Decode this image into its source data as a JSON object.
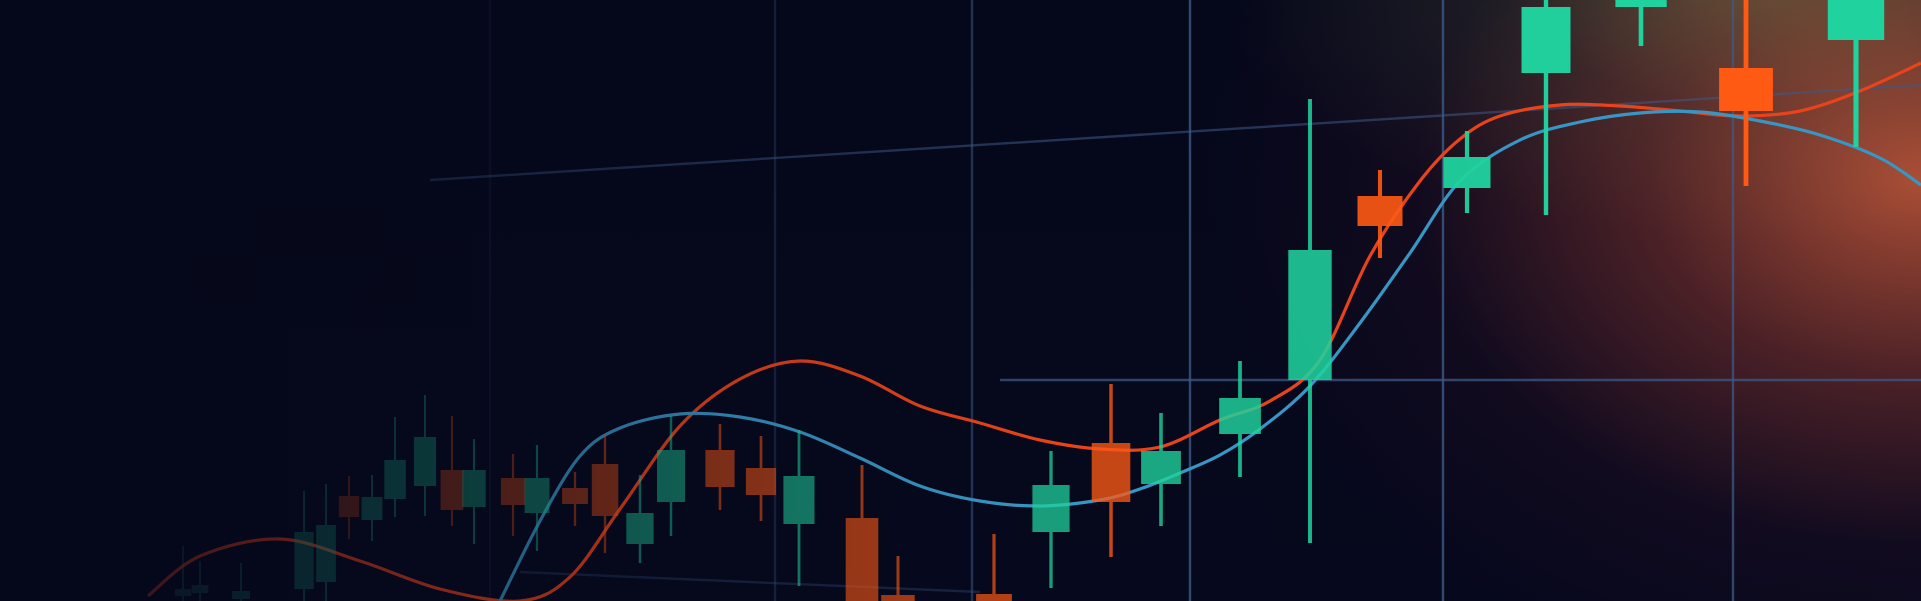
{
  "chart_data": {
    "type": "candlestick",
    "title": "",
    "xlabel": "",
    "ylabel": "",
    "grid": true,
    "ylim": [
      0,
      601
    ],
    "colors": {
      "background": "#05071a",
      "bull": "#20d39e",
      "bear": "#ff5a14",
      "line_red": "#e8431a",
      "line_blue": "#3896c4",
      "grid": "#3c5a86"
    },
    "candles": [
      {
        "x": 183,
        "open": 5,
        "close": 12,
        "high": 55,
        "low": 0,
        "dir": "bull"
      },
      {
        "x": 200,
        "open": 8,
        "close": 16,
        "high": 40,
        "low": 0,
        "dir": "bull"
      },
      {
        "x": 241,
        "open": 2,
        "close": 10,
        "high": 38,
        "low": 0,
        "dir": "bull"
      },
      {
        "x": 304,
        "open": 12,
        "close": 69,
        "high": 110,
        "low": 0,
        "dir": "bull"
      },
      {
        "x": 326,
        "open": 19,
        "close": 76,
        "high": 117,
        "low": 0,
        "dir": "bull"
      },
      {
        "x": 349,
        "open": 105,
        "close": 84,
        "high": 125,
        "low": 62,
        "dir": "bear"
      },
      {
        "x": 372,
        "open": 81,
        "close": 104,
        "high": 126,
        "low": 60,
        "dir": "bull"
      },
      {
        "x": 395,
        "open": 102,
        "close": 141,
        "high": 184,
        "low": 84,
        "dir": "bull"
      },
      {
        "x": 425,
        "open": 115,
        "close": 164,
        "high": 206,
        "low": 85,
        "dir": "bull"
      },
      {
        "x": 452,
        "open": 131,
        "close": 91,
        "high": 185,
        "low": 75,
        "dir": "bear"
      },
      {
        "x": 474,
        "open": 94,
        "close": 131,
        "high": 162,
        "low": 57,
        "dir": "bull"
      },
      {
        "x": 513,
        "open": 123,
        "close": 96,
        "high": 147,
        "low": 65,
        "dir": "bear"
      },
      {
        "x": 537,
        "open": 88,
        "close": 123,
        "high": 156,
        "low": 50,
        "dir": "bull"
      },
      {
        "x": 575,
        "open": 113,
        "close": 97,
        "high": 129,
        "low": 75,
        "dir": "bear"
      },
      {
        "x": 605,
        "open": 137,
        "close": 85,
        "high": 165,
        "low": 48,
        "dir": "bear"
      },
      {
        "x": 640,
        "open": 57,
        "close": 88,
        "high": 126,
        "low": 38,
        "dir": "bull"
      },
      {
        "x": 671,
        "open": 99,
        "close": 151,
        "high": 185,
        "low": 65,
        "dir": "bull"
      },
      {
        "x": 720,
        "open": 151,
        "close": 114,
        "high": 177,
        "low": 91,
        "dir": "bear"
      },
      {
        "x": 761,
        "open": 133,
        "close": 106,
        "high": 165,
        "low": 80,
        "dir": "bear"
      },
      {
        "x": 799,
        "open": 77,
        "close": 125,
        "high": 171,
        "low": 15,
        "dir": "bull"
      },
      {
        "x": 862,
        "open": 83,
        "close": -2,
        "high": 136,
        "low": -5,
        "dir": "bear"
      },
      {
        "x": 898,
        "open": 6,
        "close": -5,
        "high": 45,
        "low": -5,
        "dir": "bear"
      },
      {
        "x": 994,
        "open": 7,
        "close": -5,
        "high": 67,
        "low": -5,
        "dir": "bear"
      },
      {
        "x": 1051,
        "open": 69,
        "close": 116,
        "high": 150,
        "low": 13,
        "dir": "bull"
      },
      {
        "x": 1111,
        "open": 158,
        "close": 99,
        "high": 217,
        "low": 44,
        "dir": "bear"
      },
      {
        "x": 1161,
        "open": 117,
        "close": 150,
        "high": 188,
        "low": 75,
        "dir": "bull"
      },
      {
        "x": 1240,
        "open": 167,
        "close": 203,
        "high": 240,
        "low": 124,
        "dir": "bull"
      },
      {
        "x": 1310,
        "open": 221,
        "close": 351,
        "high": 502,
        "low": 58,
        "dir": "bull"
      },
      {
        "x": 1380,
        "open": 375,
        "close": 405,
        "high": 431,
        "low": 343,
        "dir": "bear"
      },
      {
        "x": 1467,
        "open": 413,
        "close": 444,
        "high": 470,
        "low": 388,
        "dir": "bull"
      },
      {
        "x": 1546,
        "open": 528,
        "close": 594,
        "high": 601,
        "low": 386,
        "dir": "bull"
      },
      {
        "x": 1641,
        "open": 601,
        "close": 594,
        "high": 601,
        "low": 555,
        "dir": "bull"
      },
      {
        "x": 1746,
        "open": 533,
        "close": 490,
        "high": 601,
        "low": 415,
        "dir": "bear"
      },
      {
        "x": 1856,
        "open": 561,
        "close": 601,
        "high": 601,
        "low": 454,
        "dir": "bull"
      }
    ],
    "series": [
      {
        "color": "red",
        "x": [
          148,
          200,
          280,
          360,
          440,
          520,
          570,
          620,
          680,
          740,
          800,
          860,
          920,
          980,
          1040,
          1100,
          1160,
          1220,
          1270,
          1320,
          1370,
          1420,
          1460,
          1500,
          1560,
          1620,
          1680,
          1740,
          1800,
          1860,
          1921
        ],
        "y": [
          5,
          45,
          62,
          40,
          12,
          0,
          24,
          92,
          175,
          222,
          240,
          225,
          195,
          178,
          161,
          152,
          154,
          181,
          200,
          241,
          345,
          420,
          462,
          485,
          496,
          495,
          490,
          485,
          490,
          510,
          538
        ]
      },
      {
        "color": "blue",
        "x": [
          500,
          540,
          580,
          620,
          680,
          740,
          800,
          860,
          920,
          980,
          1040,
          1100,
          1140,
          1180,
          1220,
          1260,
          1310,
          1360,
          1410,
          1460,
          1520,
          1580,
          1640,
          1700,
          1760,
          1820,
          1880,
          1921
        ],
        "y": [
          0,
          80,
          145,
          173,
          187,
          184,
          169,
          143,
          115,
          100,
          95,
          101,
          112,
          128,
          146,
          172,
          215,
          278,
          348,
          420,
          461,
          479,
          488,
          489,
          480,
          466,
          443,
          416
        ]
      }
    ]
  }
}
